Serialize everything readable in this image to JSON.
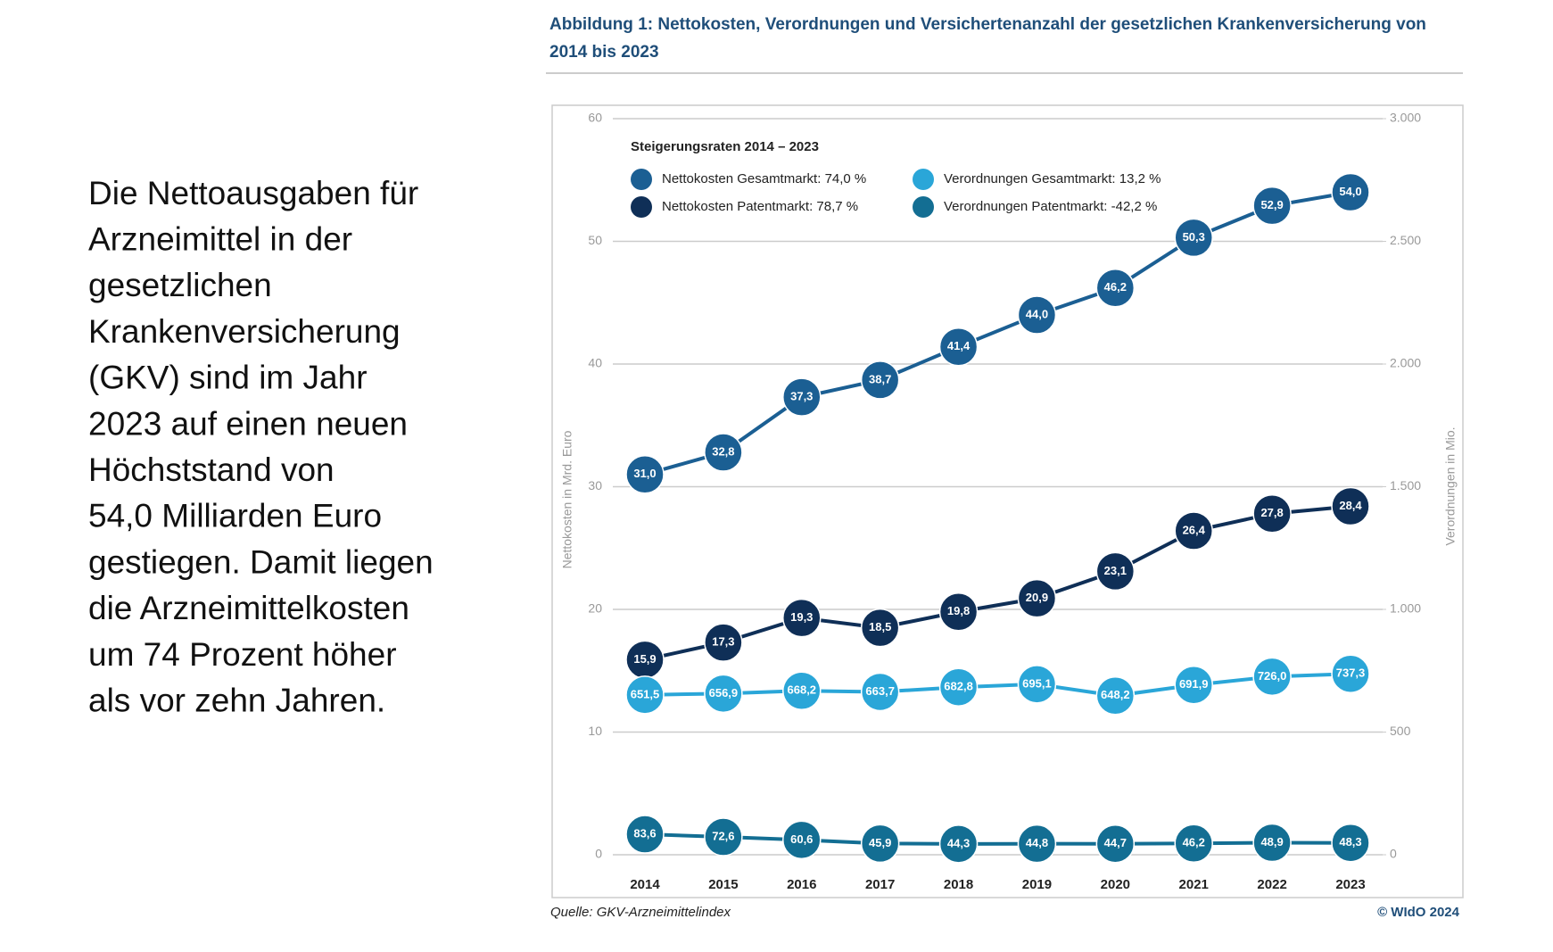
{
  "text": {
    "lines": [
      "Die Nettoausgaben für",
      "Arzneimittel in der",
      "gesetzlichen",
      "Krankenversicherung",
      "(GKV) sind im Jahr",
      "2023 auf einen neuen",
      "Höchststand von",
      "54,0 Milliarden Euro",
      "gestiegen. Damit liegen",
      "die Arzneimittelkosten",
      "um 74 Prozent höher",
      "als vor zehn Jahren."
    ]
  },
  "chart_data": {
    "type": "line",
    "title": "Abbildung 1: Nettokosten, Verordnungen und Versichertenanzahl der gesetzlichen Krankenversicherung von 2014 bis 2023",
    "legend_title": "Steigerungsraten 2014 – 2023",
    "ylabel": "Nettokosten in Mrd. Euro",
    "y2label": "Verordnungen in Mio.",
    "source": "Quelle: GKV-Arzneimittelindex",
    "copyright": "© WIdO 2024",
    "categories": [
      "2014",
      "2015",
      "2016",
      "2017",
      "2018",
      "2019",
      "2020",
      "2021",
      "2022",
      "2023"
    ],
    "ylim": [
      0,
      60
    ],
    "yticks": [
      0,
      10,
      20,
      30,
      40,
      50,
      60
    ],
    "y2lim": [
      0,
      3000
    ],
    "y2ticks": [
      0,
      500,
      {
        "value": 1000,
        "label": "1.000"
      },
      {
        "value": 1500,
        "label": "1.500"
      },
      {
        "value": 2000,
        "label": "2.000"
      },
      {
        "value": 2500,
        "label": "2.500"
      },
      {
        "value": 3000,
        "label": "3.000"
      }
    ],
    "grid": true,
    "series": [
      {
        "name": "Nettokosten Gesamtmarkt: 74,0 %",
        "color": "#1b5f93",
        "values": [
          31.0,
          32.8,
          37.3,
          38.7,
          41.4,
          44.0,
          46.2,
          50.3,
          52.9,
          54.0
        ],
        "value_labels": [
          "31,0",
          "32,8",
          "37,3",
          "38,7",
          "41,4",
          "44,0",
          "46,2",
          "50,3",
          "52,9",
          "54,0"
        ]
      },
      {
        "name": "Nettokosten Patentmarkt: 78,7 %",
        "color": "#0f2f57",
        "values": [
          15.9,
          17.3,
          19.3,
          18.5,
          19.8,
          20.9,
          23.1,
          26.4,
          27.8,
          28.4
        ],
        "value_labels": [
          "15,9",
          "17,3",
          "19,3",
          "18,5",
          "19,8",
          "20,9",
          "23,1",
          "26,4",
          "27,8",
          "28,4"
        ]
      },
      {
        "name": "Verordnungen Gesamtmarkt: 13,2 %",
        "color": "#2aa6d8",
        "axis": "y2",
        "values": [
          651.5,
          656.9,
          668.2,
          663.7,
          682.8,
          695.1,
          648.2,
          691.9,
          726.0,
          737.3
        ],
        "value_labels": [
          "651,5",
          "656,9",
          "668,2",
          "663,7",
          "682,8",
          "695,1",
          "648,2",
          "691,9",
          "726,0",
          "737,3"
        ]
      },
      {
        "name": "Verordnungen Patentmarkt: -42,2 %",
        "color": "#136e93",
        "axis": "y2",
        "values": [
          83.6,
          72.6,
          60.6,
          45.9,
          44.3,
          44.8,
          44.7,
          46.2,
          48.9,
          48.3
        ],
        "value_labels": [
          "83,6",
          "72,6",
          "60,6",
          "45,9",
          "44,3",
          "44,8",
          "44,7",
          "46,2",
          "48,9",
          "48,3"
        ]
      }
    ]
  }
}
